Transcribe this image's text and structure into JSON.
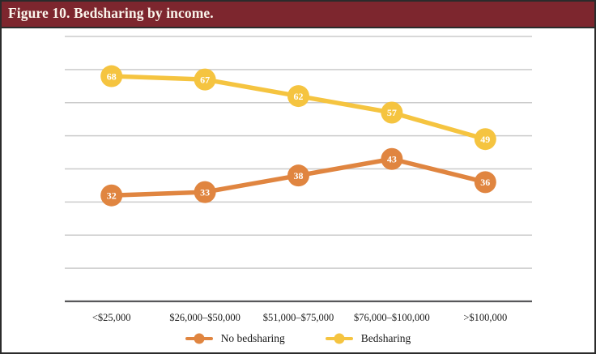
{
  "figure": {
    "title": "Figure 10. Bedsharing by income.",
    "title_bar_color": "#7d262e",
    "frame_border_color": "#2b2b2b",
    "background_color": "#ffffff"
  },
  "chart_data": {
    "type": "line",
    "title": "Figure 10. Bedsharing by income.",
    "categories": [
      "<$25,000",
      "$26,000–$50,000",
      "$51,000–$75,000",
      "$76,000–$100,000",
      ">$100,000"
    ],
    "series": [
      {
        "name": "No bedsharing",
        "color": "#e08540",
        "values": [
          32,
          33,
          38,
          43,
          36
        ]
      },
      {
        "name": "Bedsharing",
        "color": "#f5c440",
        "values": [
          68,
          67,
          62,
          57,
          49
        ]
      }
    ],
    "xlabel": "",
    "ylabel": "",
    "ylim": [
      0,
      80
    ],
    "grid_step": 10,
    "grid": true,
    "y_axis_labels_visible": false,
    "data_labels": "inside-circular-markers",
    "data_label_color": "#ffffff",
    "legend_position": "bottom-center",
    "gridline_color": "#cbcbcb",
    "axis_line_color": "#58585a"
  }
}
